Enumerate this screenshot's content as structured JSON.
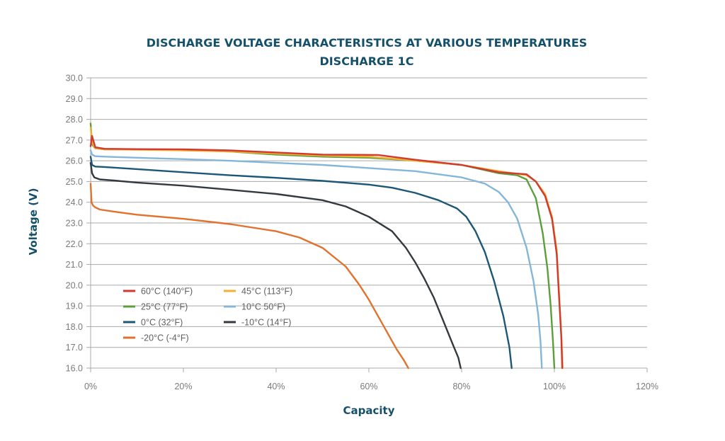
{
  "chart_data": {
    "type": "line",
    "title_lines": [
      "DISCHARGE VOLTAGE CHARACTERISTICS AT VARIOUS TEMPERATURES",
      "DISCHARGE 1C"
    ],
    "xlabel": "Capacity",
    "ylabel": "Voltage (V)",
    "xlim": [
      0,
      120
    ],
    "ylim": [
      16,
      30
    ],
    "x_ticks": [
      0,
      20,
      40,
      60,
      80,
      100,
      120
    ],
    "x_tick_labels": [
      "0%",
      "20%",
      "40%",
      "60%",
      "80%",
      "100%",
      "120%"
    ],
    "y_ticks": [
      16,
      17,
      18,
      19,
      20,
      21,
      22,
      23,
      24,
      25,
      26,
      27,
      28,
      29,
      30
    ],
    "y_tick_labels": [
      "16.0",
      "17.0",
      "18.0",
      "19.0",
      "20.0",
      "21.0",
      "22.0",
      "23.0",
      "24.0",
      "25.0",
      "26.0",
      "27.0",
      "28.0",
      "29.0",
      "30.0"
    ],
    "grid": true,
    "legend_position": "bottom-left",
    "series": [
      {
        "name": "60°C (140°F)",
        "color": "#d13a2f",
        "x": [
          0,
          0.3,
          1,
          3,
          10,
          20,
          30,
          40,
          50,
          62,
          70,
          80,
          88,
          94,
          96,
          98,
          99.5,
          100.5,
          101,
          101.5,
          101.7
        ],
        "y": [
          26.7,
          27.2,
          26.65,
          26.58,
          26.56,
          26.55,
          26.5,
          26.4,
          26.3,
          26.28,
          26.05,
          25.8,
          25.45,
          25.35,
          25.0,
          24.3,
          23.2,
          21.5,
          19.5,
          17.5,
          16.0
        ]
      },
      {
        "name": "45°C (113°F)",
        "color": "#f2b134",
        "x": [
          0,
          0.3,
          1,
          3,
          10,
          20,
          30,
          40,
          50,
          60,
          70,
          80,
          88,
          94,
          96,
          98,
          99.5,
          100.5,
          101,
          101.5,
          101.8
        ],
        "y": [
          27.6,
          26.9,
          26.6,
          26.55,
          26.53,
          26.5,
          26.45,
          26.35,
          26.25,
          26.2,
          26.0,
          25.8,
          25.5,
          25.3,
          25.0,
          24.4,
          23.3,
          21.7,
          19.7,
          17.6,
          16.0
        ]
      },
      {
        "name": "25°C (77°F)",
        "color": "#5a9f3c",
        "x": [
          0,
          0.3,
          1,
          3,
          10,
          20,
          30,
          40,
          50,
          60,
          70,
          80,
          88,
          92,
          94,
          96,
          97.5,
          98.5,
          99.2,
          99.7,
          100
        ],
        "y": [
          27.8,
          26.8,
          26.6,
          26.55,
          26.55,
          26.52,
          26.45,
          26.3,
          26.2,
          26.15,
          26.0,
          25.8,
          25.4,
          25.3,
          25.1,
          24.2,
          22.5,
          20.8,
          19.0,
          17.3,
          16.0
        ]
      },
      {
        "name": "10°C 50°F)",
        "color": "#84b6d9",
        "x": [
          0,
          0.3,
          1,
          3,
          10,
          20,
          30,
          40,
          50,
          60,
          70,
          80,
          85,
          88,
          90,
          92,
          94,
          95.5,
          96.5,
          97,
          97.3
        ],
        "y": [
          26.5,
          26.3,
          26.22,
          26.2,
          26.15,
          26.08,
          26.0,
          25.9,
          25.8,
          25.65,
          25.5,
          25.2,
          24.9,
          24.5,
          24.0,
          23.2,
          21.8,
          20.2,
          18.6,
          17.3,
          16.0
        ]
      },
      {
        "name": "0°C (32°F)",
        "color": "#1c5777",
        "x": [
          0,
          0.3,
          1,
          3,
          10,
          20,
          30,
          40,
          50,
          60,
          65,
          70,
          75,
          79,
          81,
          83,
          85,
          87,
          89,
          90.3,
          90.8
        ],
        "y": [
          26.2,
          25.8,
          25.72,
          25.7,
          25.6,
          25.45,
          25.3,
          25.18,
          25.03,
          24.85,
          24.7,
          24.45,
          24.1,
          23.7,
          23.3,
          22.6,
          21.6,
          20.2,
          18.5,
          17.0,
          16.0
        ]
      },
      {
        "name": "-10°C (14°F)",
        "color": "#333a3f",
        "x": [
          0,
          0.3,
          0.8,
          2,
          5,
          10,
          20,
          30,
          40,
          50,
          55,
          60,
          65,
          68,
          70,
          72,
          74,
          76,
          78,
          79.3,
          79.8
        ],
        "y": [
          25.9,
          25.4,
          25.2,
          25.1,
          25.05,
          24.95,
          24.8,
          24.6,
          24.4,
          24.1,
          23.8,
          23.3,
          22.6,
          21.8,
          21.1,
          20.3,
          19.4,
          18.3,
          17.2,
          16.5,
          16.0
        ]
      },
      {
        "name": "-20°C (-4°F)",
        "color": "#e0722e",
        "x": [
          0,
          0.2,
          0.5,
          1,
          2,
          5,
          10,
          20,
          30,
          40,
          45,
          50,
          55,
          58,
          60,
          62,
          64,
          66,
          67.5,
          68.5
        ],
        "y": [
          24.9,
          24.0,
          23.85,
          23.75,
          23.65,
          23.55,
          23.4,
          23.2,
          22.95,
          22.6,
          22.3,
          21.8,
          20.9,
          20.0,
          19.3,
          18.5,
          17.7,
          16.9,
          16.4,
          16.0
        ]
      }
    ]
  }
}
